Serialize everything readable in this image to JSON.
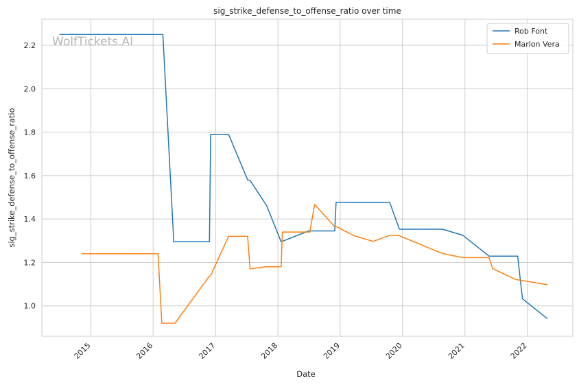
{
  "chart_data": {
    "type": "line",
    "title": "sig_strike_defense_to_offense_ratio over time",
    "xlabel": "Date",
    "ylabel": "sig_strike_defense_to_offense_ratio",
    "watermark": "WolfTickets.AI",
    "x_ticks": [
      "2015",
      "2016",
      "2017",
      "2018",
      "2019",
      "2020",
      "2021",
      "2022"
    ],
    "y_ticks": [
      "1.0",
      "1.2",
      "1.4",
      "1.6",
      "1.8",
      "2.0",
      "2.2"
    ],
    "xlim": [
      "2014-03-20",
      "2022-09-25"
    ],
    "ylim": [
      0.86,
      2.32
    ],
    "grid": true,
    "legend_position": "top-right",
    "series": [
      {
        "name": "Rob Font",
        "color": "#1f77b4",
        "points": [
          [
            "2014-07-01",
            2.25
          ],
          [
            "2016-02-27",
            2.25
          ],
          [
            "2016-05-01",
            1.295
          ],
          [
            "2016-11-26",
            1.295
          ],
          [
            "2016-12-03",
            1.79
          ],
          [
            "2017-03-18",
            1.79
          ],
          [
            "2017-07-08",
            1.58
          ],
          [
            "2017-07-22",
            1.578
          ],
          [
            "2017-10-28",
            1.46
          ],
          [
            "2018-01-20",
            1.295
          ],
          [
            "2018-06-30",
            1.345
          ],
          [
            "2018-11-30",
            1.345
          ],
          [
            "2018-12-08",
            1.477
          ],
          [
            "2019-10-18",
            1.477
          ],
          [
            "2019-12-14",
            1.353
          ],
          [
            "2020-08-22",
            1.353
          ],
          [
            "2020-12-20",
            1.325
          ],
          [
            "2021-05-22",
            1.229
          ],
          [
            "2021-11-06",
            1.229
          ],
          [
            "2021-12-04",
            1.033
          ],
          [
            "2022-04-30",
            0.94
          ]
        ]
      },
      {
        "name": "Marlon Vera",
        "color": "#ff7f0e",
        "points": [
          [
            "2014-11-08",
            1.24
          ],
          [
            "2016-01-30",
            1.24
          ],
          [
            "2016-02-21",
            0.92
          ],
          [
            "2016-05-08",
            0.92
          ],
          [
            "2016-11-19",
            1.13
          ],
          [
            "2016-12-03",
            1.14
          ],
          [
            "2017-03-18",
            1.32
          ],
          [
            "2017-07-08",
            1.32
          ],
          [
            "2017-07-22",
            1.17
          ],
          [
            "2017-10-21",
            1.18
          ],
          [
            "2018-01-20",
            1.18
          ],
          [
            "2018-01-27",
            1.34
          ],
          [
            "2018-07-07",
            1.34
          ],
          [
            "2018-08-04",
            1.467
          ],
          [
            "2018-11-30",
            1.365
          ],
          [
            "2018-12-15",
            1.363
          ],
          [
            "2019-03-23",
            1.323
          ],
          [
            "2019-07-13",
            1.297
          ],
          [
            "2019-10-19",
            1.325
          ],
          [
            "2019-12-07",
            1.325
          ],
          [
            "2020-08-22",
            1.241
          ],
          [
            "2020-12-19",
            1.222
          ],
          [
            "2021-05-22",
            1.222
          ],
          [
            "2021-06-12",
            1.172
          ],
          [
            "2021-10-23",
            1.122
          ],
          [
            "2022-04-30",
            1.097
          ]
        ]
      }
    ]
  }
}
